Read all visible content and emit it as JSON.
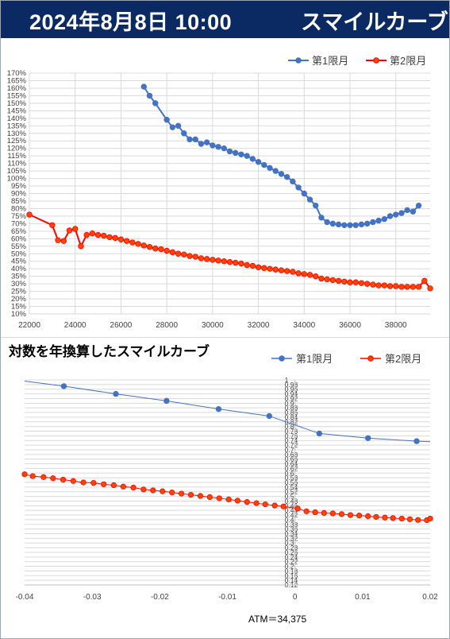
{
  "header": {
    "datetime": "2024年8月8日 10:00",
    "title": "スマイルカーブ"
  },
  "chart2_heading": "対数を年換算したスマイルカーブ",
  "atm_label": "ATM＝34,375",
  "colors": {
    "series1": "#4472c4",
    "series2": "#ff0000",
    "series2_fill": "#ff4500",
    "grid": "#d9d9d9",
    "header_bg": "#0b2a63"
  },
  "chart_data": [
    {
      "type": "line",
      "xlim": [
        22000,
        39500
      ],
      "ylim": [
        0.1,
        1.7
      ],
      "y_format": "percent",
      "x_ticks": [
        22000,
        24000,
        26000,
        28000,
        30000,
        32000,
        34000,
        36000,
        38000
      ],
      "y_ticks": [
        0.1,
        0.15,
        0.2,
        0.25,
        0.3,
        0.35,
        0.4,
        0.45,
        0.5,
        0.55,
        0.6,
        0.65,
        0.7,
        0.75,
        0.8,
        0.85,
        0.9,
        0.95,
        1.0,
        1.05,
        1.1,
        1.15,
        1.2,
        1.25,
        1.3,
        1.35,
        1.4,
        1.45,
        1.5,
        1.55,
        1.6,
        1.65,
        1.7
      ],
      "legend": "top-right",
      "grid": true,
      "series": [
        {
          "name": "第1限月",
          "points": [
            [
              27000,
              1.61
            ],
            [
              27250,
              1.55
            ],
            [
              27500,
              1.5
            ],
            [
              28000,
              1.39
            ],
            [
              28250,
              1.34
            ],
            [
              28500,
              1.35
            ],
            [
              28750,
              1.3
            ],
            [
              29000,
              1.26
            ],
            [
              29250,
              1.26
            ],
            [
              29500,
              1.23
            ],
            [
              29750,
              1.24
            ],
            [
              30000,
              1.22
            ],
            [
              30250,
              1.21
            ],
            [
              30500,
              1.2
            ],
            [
              30750,
              1.18
            ],
            [
              31000,
              1.17
            ],
            [
              31250,
              1.16
            ],
            [
              31500,
              1.15
            ],
            [
              31750,
              1.13
            ],
            [
              32000,
              1.11
            ],
            [
              32250,
              1.09
            ],
            [
              32500,
              1.07
            ],
            [
              32750,
              1.05
            ],
            [
              33000,
              1.03
            ],
            [
              33250,
              1.01
            ],
            [
              33500,
              0.98
            ],
            [
              33750,
              0.94
            ],
            [
              34000,
              0.9
            ],
            [
              34250,
              0.86
            ],
            [
              34500,
              0.82
            ],
            [
              34750,
              0.74
            ],
            [
              35000,
              0.71
            ],
            [
              35250,
              0.7
            ],
            [
              35500,
              0.695
            ],
            [
              35750,
              0.69
            ],
            [
              36000,
              0.69
            ],
            [
              36250,
              0.69
            ],
            [
              36500,
              0.695
            ],
            [
              36750,
              0.7
            ],
            [
              37000,
              0.71
            ],
            [
              37250,
              0.72
            ],
            [
              37500,
              0.73
            ],
            [
              37750,
              0.75
            ],
            [
              38000,
              0.76
            ],
            [
              38250,
              0.77
            ],
            [
              38500,
              0.79
            ],
            [
              38750,
              0.78
            ],
            [
              39000,
              0.82
            ]
          ]
        },
        {
          "name": "第2限月",
          "points": [
            [
              22000,
              0.76
            ],
            [
              23000,
              0.69
            ],
            [
              23250,
              0.59
            ],
            [
              23500,
              0.585
            ],
            [
              23750,
              0.655
            ],
            [
              24000,
              0.665
            ],
            [
              24250,
              0.55
            ],
            [
              24500,
              0.625
            ],
            [
              24750,
              0.635
            ],
            [
              25000,
              0.625
            ],
            [
              25250,
              0.62
            ],
            [
              25500,
              0.61
            ],
            [
              25750,
              0.605
            ],
            [
              26000,
              0.595
            ],
            [
              26250,
              0.585
            ],
            [
              26500,
              0.575
            ],
            [
              26750,
              0.565
            ],
            [
              27000,
              0.555
            ],
            [
              27250,
              0.545
            ],
            [
              27500,
              0.535
            ],
            [
              27750,
              0.53
            ],
            [
              28000,
              0.52
            ],
            [
              28250,
              0.51
            ],
            [
              28500,
              0.5
            ],
            [
              28750,
              0.495
            ],
            [
              29000,
              0.485
            ],
            [
              29250,
              0.48
            ],
            [
              29500,
              0.47
            ],
            [
              29750,
              0.465
            ],
            [
              30000,
              0.46
            ],
            [
              30250,
              0.455
            ],
            [
              30500,
              0.45
            ],
            [
              30750,
              0.445
            ],
            [
              31000,
              0.44
            ],
            [
              31250,
              0.435
            ],
            [
              31500,
              0.425
            ],
            [
              31750,
              0.42
            ],
            [
              32000,
              0.41
            ],
            [
              32250,
              0.405
            ],
            [
              32500,
              0.4
            ],
            [
              32750,
              0.395
            ],
            [
              33000,
              0.39
            ],
            [
              33250,
              0.385
            ],
            [
              33500,
              0.38
            ],
            [
              33750,
              0.37
            ],
            [
              34000,
              0.365
            ],
            [
              34250,
              0.36
            ],
            [
              34500,
              0.35
            ],
            [
              34750,
              0.335
            ],
            [
              35000,
              0.33
            ],
            [
              35250,
              0.325
            ],
            [
              35500,
              0.32
            ],
            [
              35750,
              0.315
            ],
            [
              36000,
              0.31
            ],
            [
              36250,
              0.31
            ],
            [
              36500,
              0.305
            ],
            [
              36750,
              0.3
            ],
            [
              37000,
              0.295
            ],
            [
              37250,
              0.29
            ],
            [
              37500,
              0.29
            ],
            [
              37750,
              0.285
            ],
            [
              38000,
              0.285
            ],
            [
              38250,
              0.28
            ],
            [
              38500,
              0.28
            ],
            [
              38750,
              0.28
            ],
            [
              39000,
              0.28
            ],
            [
              39250,
              0.32
            ],
            [
              39500,
              0.27
            ]
          ]
        }
      ]
    },
    {
      "type": "line",
      "xlim": [
        -0.04,
        0.02
      ],
      "ylim": [
        0.12,
        1.0
      ],
      "x_ticks": [
        -0.04,
        -0.03,
        -0.02,
        -0.01,
        0,
        0.01,
        0.02
      ],
      "y_ticks": [
        0.12,
        0.14,
        0.16,
        0.18,
        0.2,
        0.22,
        0.24,
        0.26,
        0.28,
        0.3,
        0.32,
        0.34,
        0.36,
        0.38,
        0.4,
        0.42,
        0.44,
        0.46,
        0.48,
        0.5,
        0.52,
        0.54,
        0.56,
        0.58,
        0.6,
        0.62,
        0.64,
        0.66,
        0.68,
        0.7,
        0.72,
        0.74,
        0.76,
        0.78,
        0.8,
        0.82,
        0.84,
        0.86,
        0.88,
        0.9,
        0.92,
        0.94,
        0.96,
        0.98,
        1
      ],
      "legend": "top-right",
      "grid": true,
      "series": [
        {
          "name": "第1限月",
          "points": [
            [
              -0.04,
              0.995
            ],
            [
              -0.0342,
              0.973
            ],
            [
              -0.0265,
              0.94
            ],
            [
              -0.019,
              0.91
            ],
            [
              -0.0113,
              0.875
            ],
            [
              -0.0038,
              0.845
            ],
            [
              0.0036,
              0.77
            ],
            [
              0.0108,
              0.75
            ],
            [
              0.018,
              0.737
            ],
            [
              0.02,
              0.735
            ]
          ]
        },
        {
          "name": "第2限月",
          "points": [
            [
              -0.04,
              0.595
            ],
            [
              -0.0388,
              0.587
            ],
            [
              -0.0372,
              0.583
            ],
            [
              -0.0358,
              0.578
            ],
            [
              -0.0343,
              0.572
            ],
            [
              -0.0328,
              0.566
            ],
            [
              -0.0313,
              0.56
            ],
            [
              -0.0298,
              0.558
            ],
            [
              -0.0283,
              0.552
            ],
            [
              -0.0268,
              0.548
            ],
            [
              -0.0254,
              0.542
            ],
            [
              -0.0239,
              0.538
            ],
            [
              -0.0224,
              0.53
            ],
            [
              -0.021,
              0.526
            ],
            [
              -0.0196,
              0.522
            ],
            [
              -0.0182,
              0.517
            ],
            [
              -0.0168,
              0.512
            ],
            [
              -0.0154,
              0.507
            ],
            [
              -0.014,
              0.502
            ],
            [
              -0.0126,
              0.497
            ],
            [
              -0.0112,
              0.492
            ],
            [
              -0.0098,
              0.487
            ],
            [
              -0.0085,
              0.482
            ],
            [
              -0.0071,
              0.476
            ],
            [
              -0.0057,
              0.471
            ],
            [
              -0.0044,
              0.466
            ],
            [
              -0.003,
              0.461
            ],
            [
              -0.0017,
              0.457
            ],
            [
              0.0004,
              0.448
            ],
            [
              0.0017,
              0.436
            ],
            [
              0.003,
              0.432
            ],
            [
              0.0043,
              0.429
            ],
            [
              0.0056,
              0.427
            ],
            [
              0.0069,
              0.424
            ],
            [
              0.0082,
              0.42
            ],
            [
              0.0095,
              0.418
            ],
            [
              0.0108,
              0.415
            ],
            [
              0.012,
              0.412
            ],
            [
              0.0133,
              0.409
            ],
            [
              0.0145,
              0.407
            ],
            [
              0.0158,
              0.405
            ],
            [
              0.017,
              0.402
            ],
            [
              0.0182,
              0.399
            ],
            [
              0.0195,
              0.398
            ],
            [
              0.02,
              0.405
            ]
          ]
        }
      ]
    }
  ]
}
